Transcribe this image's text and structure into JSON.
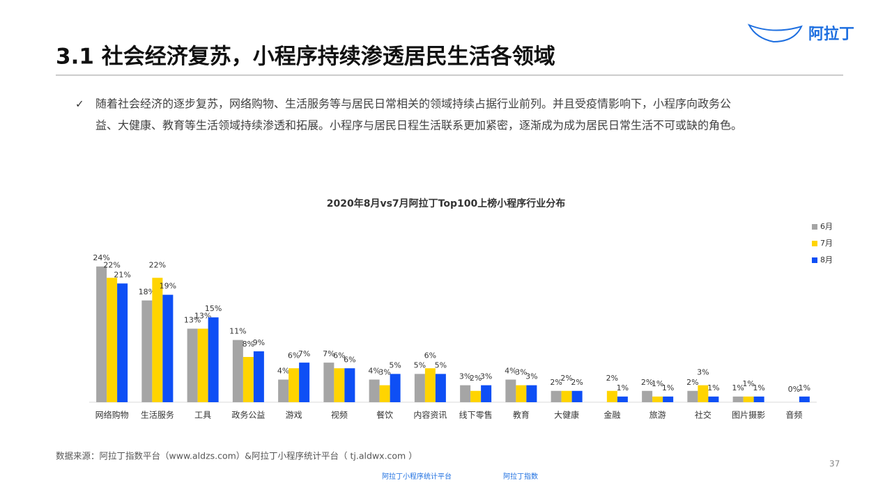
{
  "header": {
    "title": "3.1 社会经济复苏，小程序持续渗透居民生活各领域",
    "logo": "阿拉丁"
  },
  "bullet": {
    "lines": [
      "随着社会经济的逐步复苏，网络购物、生活服务等与居民日常相关的领域持续占据行业前列。并且受疫情影响下，小程序向政务公",
      "益、大健康、教育等生活领域持续渗透和拓展。小程序与居民日程生活联系更加紧密，逐渐成为成为居民日常生活不可或缺的角色。"
    ]
  },
  "chart_data": {
    "type": "bar",
    "title": "2020年8月vs7月阿拉丁Top100上榜小程序行业分布",
    "categories": [
      "网络购物",
      "生活服务",
      "工具",
      "政务公益",
      "游戏",
      "视频",
      "餐饮",
      "内容资讯",
      "线下零售",
      "教育",
      "大健康",
      "金融",
      "旅游",
      "社交",
      "图片摄影",
      "音频"
    ],
    "series": [
      {
        "name": "6月",
        "color": "#a5a5a5",
        "values": [
          24,
          18,
          13,
          11,
          4,
          7,
          4,
          5,
          3,
          4,
          2,
          null,
          2,
          2,
          1,
          null
        ],
        "value_labels": [
          "24%",
          "18%",
          "13%",
          "11%",
          "4%",
          "7%",
          "4%",
          "5%",
          "3%",
          "4%",
          "2%",
          null,
          "2%",
          "2%",
          "1%",
          null
        ]
      },
      {
        "name": "7月",
        "color": "#ffd400",
        "values": [
          22,
          22,
          13,
          8,
          6,
          6,
          3,
          6,
          2,
          3,
          2,
          2,
          1,
          3,
          1,
          0
        ],
        "value_labels": [
          "22%",
          "22%",
          "13%",
          "8%",
          "6%",
          "6%",
          "3%",
          "6%",
          "2%",
          "3%",
          "2%",
          "2%",
          "1%",
          "3%",
          "1%",
          "0%"
        ]
      },
      {
        "name": "8月",
        "color": "#0e4ff5",
        "values": [
          21,
          19,
          15,
          9,
          7,
          6,
          5,
          5,
          3,
          3,
          2,
          1,
          1,
          1,
          1,
          1
        ],
        "value_labels": [
          "21%",
          "19%",
          "15%",
          "9%",
          "7%",
          "6%",
          "5%",
          "5%",
          "3%",
          "3%",
          "2%",
          "1%",
          "1%",
          "1%",
          "1%",
          "1%"
        ]
      }
    ],
    "legend": "top-right"
  },
  "footer": {
    "source": "数据来源：阿拉丁指数平台（www.aldzs.com）&阿拉丁小程序统计平台（ tj.aldwx.com ）",
    "page": "37",
    "logos": [
      "阿拉丁小程序统计平台",
      "阿拉丁指数"
    ]
  }
}
